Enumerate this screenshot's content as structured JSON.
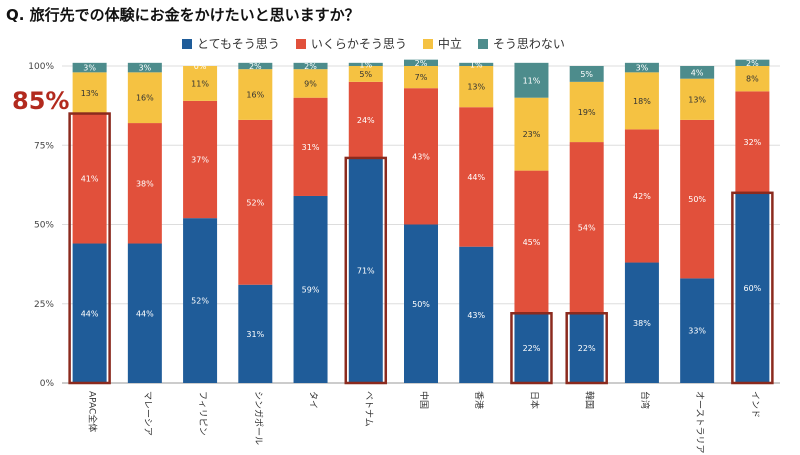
{
  "chart_data": {
    "type": "bar",
    "stacked": true,
    "title": "Q. 旅行先での体験にお金をかけたいと思いますか？",
    "categories": [
      "APAC全体",
      "マレーシア",
      "フィリピン",
      "シンガポール",
      "タイ",
      "ベトナム",
      "中国",
      "香港",
      "日本",
      "韓国",
      "台湾",
      "オーストラリア",
      "インド"
    ],
    "series": [
      {
        "name": "とてもそう思う",
        "color": "#1f5c99",
        "values": [
          44,
          44,
          52,
          31,
          59,
          71,
          50,
          43,
          22,
          22,
          38,
          33,
          60
        ]
      },
      {
        "name": "いくらかそう思う",
        "color": "#e1503b",
        "values": [
          41,
          38,
          37,
          52,
          31,
          24,
          43,
          44,
          45,
          54,
          42,
          50,
          32
        ]
      },
      {
        "name": "中立",
        "color": "#f5c242",
        "values": [
          13,
          16,
          11,
          16,
          9,
          5,
          7,
          13,
          23,
          19,
          18,
          13,
          8
        ]
      },
      {
        "name": "そう思わない",
        "color": "#4d8c8c",
        "values": [
          3,
          3,
          0,
          2,
          2,
          1,
          2,
          1,
          11,
          5,
          3,
          4,
          2
        ]
      }
    ],
    "ylim": [
      0,
      100
    ],
    "yticks": [
      "0%",
      "25%",
      "50%",
      "75%",
      "100%"
    ],
    "highlighted_categories": [
      "APAC全体",
      "ベトナム",
      "日本",
      "韓国",
      "インド"
    ],
    "highlight_color": "#8b2a1e",
    "annotation": "85%",
    "legend_position": "top",
    "grid": true
  }
}
